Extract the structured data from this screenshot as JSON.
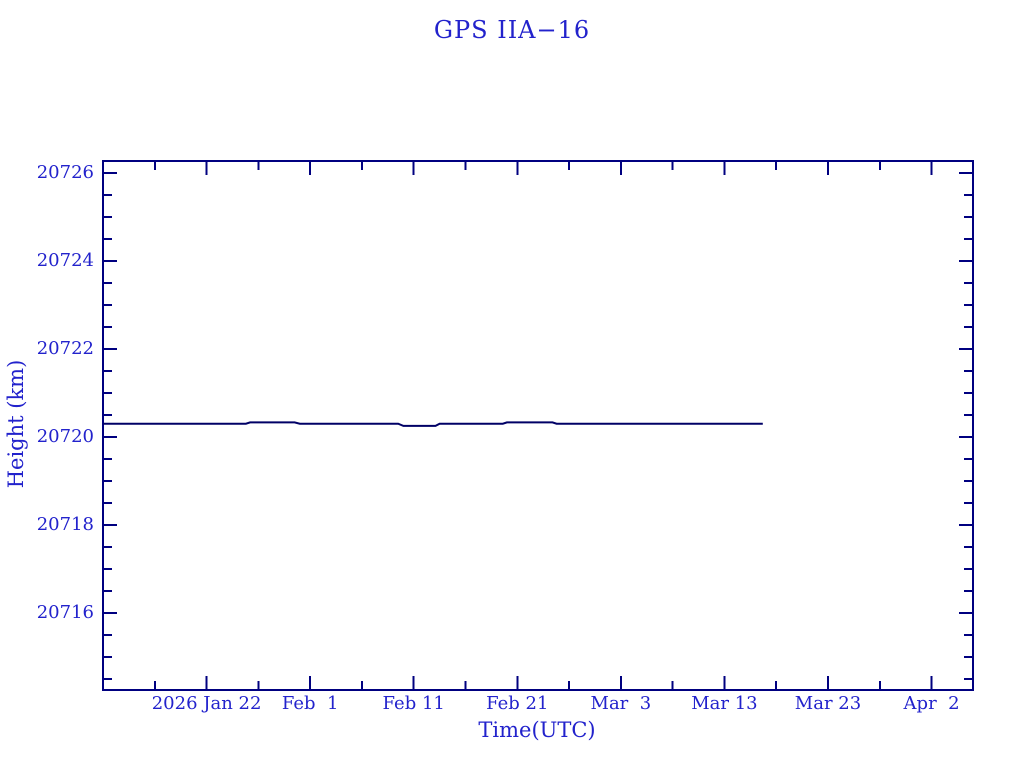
{
  "colors": {
    "background": "#ffffff",
    "text": "#2222cc",
    "frame": "#000080",
    "line": "#000066"
  },
  "chart_data": {
    "type": "line",
    "title": "GPS IIA−16",
    "xlabel": "Time(UTC)",
    "ylabel": "Height (km)",
    "grid": false,
    "legend": false,
    "x_axis": {
      "unit": "date (UTC)",
      "start": "2026 Jan 12",
      "end": "2026 Apr 6",
      "range_days": [
        0,
        84
      ],
      "major_ticks": [
        {
          "day": 10,
          "label": "2026 Jan 22"
        },
        {
          "day": 20,
          "label": "Feb  1"
        },
        {
          "day": 30,
          "label": "Feb 11"
        },
        {
          "day": 40,
          "label": "Feb 21"
        },
        {
          "day": 50,
          "label": "Mar  3"
        },
        {
          "day": 60,
          "label": "Mar 13"
        },
        {
          "day": 70,
          "label": "Mar 23"
        },
        {
          "day": 80,
          "label": "Apr  2"
        }
      ],
      "minor_tick_days": [
        5,
        15,
        25,
        35,
        45,
        55,
        65,
        75
      ]
    },
    "y_axis": {
      "unit": "km",
      "range_km": [
        20714.25,
        20726.27
      ],
      "major_ticks": [
        20716,
        20718,
        20720,
        20722,
        20724,
        20726
      ],
      "minor_step_km": 0.5
    },
    "series": [
      {
        "name": "GPS IIA-16 height",
        "approx_constant_height_km": 20720.3,
        "points_day_km": [
          [
            0.0,
            20720.3
          ],
          [
            13.8,
            20720.3
          ],
          [
            14.2,
            20720.33
          ],
          [
            18.5,
            20720.33
          ],
          [
            19.0,
            20720.3
          ],
          [
            28.5,
            20720.3
          ],
          [
            29.0,
            20720.25
          ],
          [
            32.1,
            20720.25
          ],
          [
            32.5,
            20720.3
          ],
          [
            38.6,
            20720.3
          ],
          [
            39.0,
            20720.33
          ],
          [
            43.4,
            20720.33
          ],
          [
            43.8,
            20720.3
          ],
          [
            63.7,
            20720.3
          ]
        ]
      }
    ]
  }
}
